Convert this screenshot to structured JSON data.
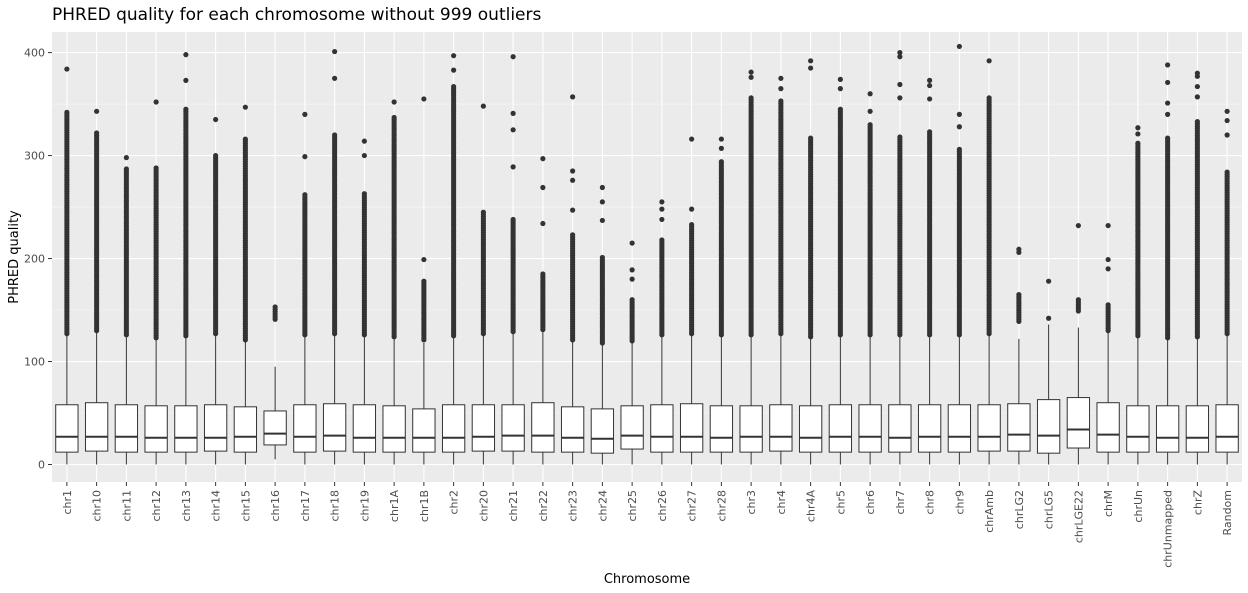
{
  "chart_data": {
    "type": "boxplot",
    "title": "PHRED quality for each chromosome without 999 outliers",
    "xlabel": "Chromosome",
    "ylabel": "PHRED quality",
    "ylim": [
      -17,
      420
    ],
    "yticks": [
      0,
      100,
      200,
      300,
      400
    ],
    "grid": true,
    "legend": "none",
    "colors": {
      "panel": "#ebebeb",
      "grid_major": "#ffffff",
      "box_fill": "#ffffff",
      "box_line": "#333333",
      "outlier": "#333333"
    },
    "series": [
      {
        "category": "chr1",
        "q1": 12,
        "median": 27,
        "q3": 58,
        "lower_whisker": 0,
        "upper_whisker": 127,
        "outliers_min": 127,
        "outliers_max": 342,
        "extreme_outliers": [
          384
        ]
      },
      {
        "category": "chr10",
        "q1": 13,
        "median": 27,
        "q3": 60,
        "lower_whisker": 0,
        "upper_whisker": 130,
        "outliers_min": 130,
        "outliers_max": 322,
        "extreme_outliers": [
          343
        ]
      },
      {
        "category": "chr11",
        "q1": 12,
        "median": 27,
        "q3": 58,
        "lower_whisker": 0,
        "upper_whisker": 126,
        "outliers_min": 126,
        "outliers_max": 287,
        "extreme_outliers": [
          298
        ]
      },
      {
        "category": "chr12",
        "q1": 12,
        "median": 26,
        "q3": 57,
        "lower_whisker": 0,
        "upper_whisker": 123,
        "outliers_min": 123,
        "outliers_max": 288,
        "extreme_outliers": [
          352
        ]
      },
      {
        "category": "chr13",
        "q1": 12,
        "median": 26,
        "q3": 57,
        "lower_whisker": 0,
        "upper_whisker": 125,
        "outliers_min": 125,
        "outliers_max": 345,
        "extreme_outliers": [
          373,
          398
        ]
      },
      {
        "category": "chr14",
        "q1": 13,
        "median": 26,
        "q3": 58,
        "lower_whisker": 0,
        "upper_whisker": 127,
        "outliers_min": 127,
        "outliers_max": 300,
        "extreme_outliers": [
          335
        ]
      },
      {
        "category": "chr15",
        "q1": 12,
        "median": 27,
        "q3": 56,
        "lower_whisker": 0,
        "upper_whisker": 121,
        "outliers_min": 121,
        "outliers_max": 316,
        "extreme_outliers": [
          347
        ]
      },
      {
        "category": "chr16",
        "q1": 19,
        "median": 30,
        "q3": 52,
        "lower_whisker": 5,
        "upper_whisker": 95,
        "outliers_min": 141,
        "outliers_max": 153,
        "extreme_outliers": []
      },
      {
        "category": "chr17",
        "q1": 12,
        "median": 27,
        "q3": 58,
        "lower_whisker": 0,
        "upper_whisker": 126,
        "outliers_min": 126,
        "outliers_max": 262,
        "extreme_outliers": [
          299,
          340
        ]
      },
      {
        "category": "chr18",
        "q1": 13,
        "median": 28,
        "q3": 59,
        "lower_whisker": 0,
        "upper_whisker": 127,
        "outliers_min": 127,
        "outliers_max": 320,
        "extreme_outliers": [
          375,
          401
        ]
      },
      {
        "category": "chr19",
        "q1": 12,
        "median": 26,
        "q3": 58,
        "lower_whisker": 0,
        "upper_whisker": 126,
        "outliers_min": 126,
        "outliers_max": 263,
        "extreme_outliers": [
          300,
          314
        ]
      },
      {
        "category": "chr1A",
        "q1": 12,
        "median": 26,
        "q3": 57,
        "lower_whisker": 0,
        "upper_whisker": 124,
        "outliers_min": 124,
        "outliers_max": 337,
        "extreme_outliers": [
          352
        ]
      },
      {
        "category": "chr1B",
        "q1": 12,
        "median": 26,
        "q3": 54,
        "lower_whisker": 0,
        "upper_whisker": 118,
        "outliers_min": 121,
        "outliers_max": 178,
        "extreme_outliers": [
          199,
          355
        ]
      },
      {
        "category": "chr2",
        "q1": 12,
        "median": 26,
        "q3": 58,
        "lower_whisker": 0,
        "upper_whisker": 125,
        "outliers_min": 125,
        "outliers_max": 367,
        "extreme_outliers": [
          383,
          397
        ]
      },
      {
        "category": "chr20",
        "q1": 13,
        "median": 27,
        "q3": 58,
        "lower_whisker": 0,
        "upper_whisker": 127,
        "outliers_min": 127,
        "outliers_max": 245,
        "extreme_outliers": [
          348
        ]
      },
      {
        "category": "chr21",
        "q1": 13,
        "median": 28,
        "q3": 58,
        "lower_whisker": 0,
        "upper_whisker": 129,
        "outliers_min": 129,
        "outliers_max": 238,
        "extreme_outliers": [
          289,
          325,
          341,
          396
        ]
      },
      {
        "category": "chr22",
        "q1": 12,
        "median": 28,
        "q3": 60,
        "lower_whisker": 0,
        "upper_whisker": 131,
        "outliers_min": 131,
        "outliers_max": 185,
        "extreme_outliers": [
          234,
          269,
          297
        ]
      },
      {
        "category": "chr23",
        "q1": 12,
        "median": 26,
        "q3": 56,
        "lower_whisker": 0,
        "upper_whisker": 121,
        "outliers_min": 121,
        "outliers_max": 223,
        "extreme_outliers": [
          247,
          276,
          285,
          357
        ]
      },
      {
        "category": "chr24",
        "q1": 11,
        "median": 25,
        "q3": 54,
        "lower_whisker": 0,
        "upper_whisker": 118,
        "outliers_min": 118,
        "outliers_max": 201,
        "extreme_outliers": [
          237,
          255,
          269
        ]
      },
      {
        "category": "chr25",
        "q1": 15,
        "median": 28,
        "q3": 57,
        "lower_whisker": 0,
        "upper_whisker": 120,
        "outliers_min": 120,
        "outliers_max": 160,
        "extreme_outliers": [
          180,
          189,
          215
        ]
      },
      {
        "category": "chr26",
        "q1": 12,
        "median": 27,
        "q3": 58,
        "lower_whisker": 0,
        "upper_whisker": 126,
        "outliers_min": 126,
        "outliers_max": 218,
        "extreme_outliers": [
          238,
          248,
          255
        ]
      },
      {
        "category": "chr27",
        "q1": 12,
        "median": 27,
        "q3": 59,
        "lower_whisker": 0,
        "upper_whisker": 127,
        "outliers_min": 127,
        "outliers_max": 233,
        "extreme_outliers": [
          248,
          316
        ]
      },
      {
        "category": "chr28",
        "q1": 12,
        "median": 26,
        "q3": 57,
        "lower_whisker": 0,
        "upper_whisker": 126,
        "outliers_min": 126,
        "outliers_max": 294,
        "extreme_outliers": [
          307,
          316
        ]
      },
      {
        "category": "chr3",
        "q1": 12,
        "median": 27,
        "q3": 57,
        "lower_whisker": 0,
        "upper_whisker": 126,
        "outliers_min": 126,
        "outliers_max": 356,
        "extreme_outliers": [
          376,
          381
        ]
      },
      {
        "category": "chr4",
        "q1": 13,
        "median": 27,
        "q3": 58,
        "lower_whisker": 0,
        "upper_whisker": 127,
        "outliers_min": 127,
        "outliers_max": 353,
        "extreme_outliers": [
          365,
          375
        ]
      },
      {
        "category": "chr4A",
        "q1": 12,
        "median": 26,
        "q3": 57,
        "lower_whisker": 0,
        "upper_whisker": 124,
        "outliers_min": 124,
        "outliers_max": 317,
        "extreme_outliers": [
          385,
          392
        ]
      },
      {
        "category": "chr5",
        "q1": 12,
        "median": 27,
        "q3": 58,
        "lower_whisker": 0,
        "upper_whisker": 126,
        "outliers_min": 126,
        "outliers_max": 345,
        "extreme_outliers": [
          365,
          374
        ]
      },
      {
        "category": "chr6",
        "q1": 12,
        "median": 27,
        "q3": 58,
        "lower_whisker": 0,
        "upper_whisker": 126,
        "outliers_min": 126,
        "outliers_max": 330,
        "extreme_outliers": [
          343,
          360
        ]
      },
      {
        "category": "chr7",
        "q1": 12,
        "median": 26,
        "q3": 58,
        "lower_whisker": 0,
        "upper_whisker": 126,
        "outliers_min": 126,
        "outliers_max": 318,
        "extreme_outliers": [
          356,
          369,
          396,
          400
        ]
      },
      {
        "category": "chr8",
        "q1": 12,
        "median": 27,
        "q3": 58,
        "lower_whisker": 0,
        "upper_whisker": 126,
        "outliers_min": 126,
        "outliers_max": 323,
        "extreme_outliers": [
          355,
          368,
          373
        ]
      },
      {
        "category": "chr9",
        "q1": 12,
        "median": 27,
        "q3": 58,
        "lower_whisker": 0,
        "upper_whisker": 126,
        "outliers_min": 126,
        "outliers_max": 306,
        "extreme_outliers": [
          328,
          340,
          406
        ]
      },
      {
        "category": "chrAmb",
        "q1": 13,
        "median": 27,
        "q3": 58,
        "lower_whisker": 0,
        "upper_whisker": 127,
        "outliers_min": 127,
        "outliers_max": 356,
        "extreme_outliers": [
          392
        ]
      },
      {
        "category": "chrLG2",
        "q1": 13,
        "median": 29,
        "q3": 59,
        "lower_whisker": 0,
        "upper_whisker": 122,
        "outliers_min": 139,
        "outliers_max": 165,
        "extreme_outliers": [
          206,
          209
        ]
      },
      {
        "category": "chrLG5",
        "q1": 11,
        "median": 28,
        "q3": 63,
        "lower_whisker": 0,
        "upper_whisker": 136,
        "outliers_min": 142,
        "outliers_max": 142,
        "extreme_outliers": [
          178
        ]
      },
      {
        "category": "chrLGE22",
        "q1": 16,
        "median": 34,
        "q3": 65,
        "lower_whisker": 0,
        "upper_whisker": 133,
        "outliers_min": 149,
        "outliers_max": 160,
        "extreme_outliers": [
          232
        ]
      },
      {
        "category": "chrM",
        "q1": 12,
        "median": 29,
        "q3": 60,
        "lower_whisker": 0,
        "upper_whisker": 130,
        "outliers_min": 130,
        "outliers_max": 155,
        "extreme_outliers": [
          190,
          199,
          232
        ]
      },
      {
        "category": "chrUn",
        "q1": 12,
        "median": 27,
        "q3": 57,
        "lower_whisker": 0,
        "upper_whisker": 125,
        "outliers_min": 125,
        "outliers_max": 312,
        "extreme_outliers": [
          321,
          327
        ]
      },
      {
        "category": "chrUnmapped",
        "q1": 12,
        "median": 26,
        "q3": 57,
        "lower_whisker": 0,
        "upper_whisker": 123,
        "outliers_min": 123,
        "outliers_max": 317,
        "extreme_outliers": [
          340,
          351,
          371,
          388
        ]
      },
      {
        "category": "chrZ",
        "q1": 12,
        "median": 26,
        "q3": 57,
        "lower_whisker": 0,
        "upper_whisker": 124,
        "outliers_min": 124,
        "outliers_max": 333,
        "extreme_outliers": [
          357,
          367,
          377,
          380
        ]
      },
      {
        "category": "Random",
        "q1": 12,
        "median": 27,
        "q3": 58,
        "lower_whisker": 0,
        "upper_whisker": 127,
        "outliers_min": 127,
        "outliers_max": 284,
        "extreme_outliers": [
          320,
          334,
          343
        ]
      }
    ]
  }
}
